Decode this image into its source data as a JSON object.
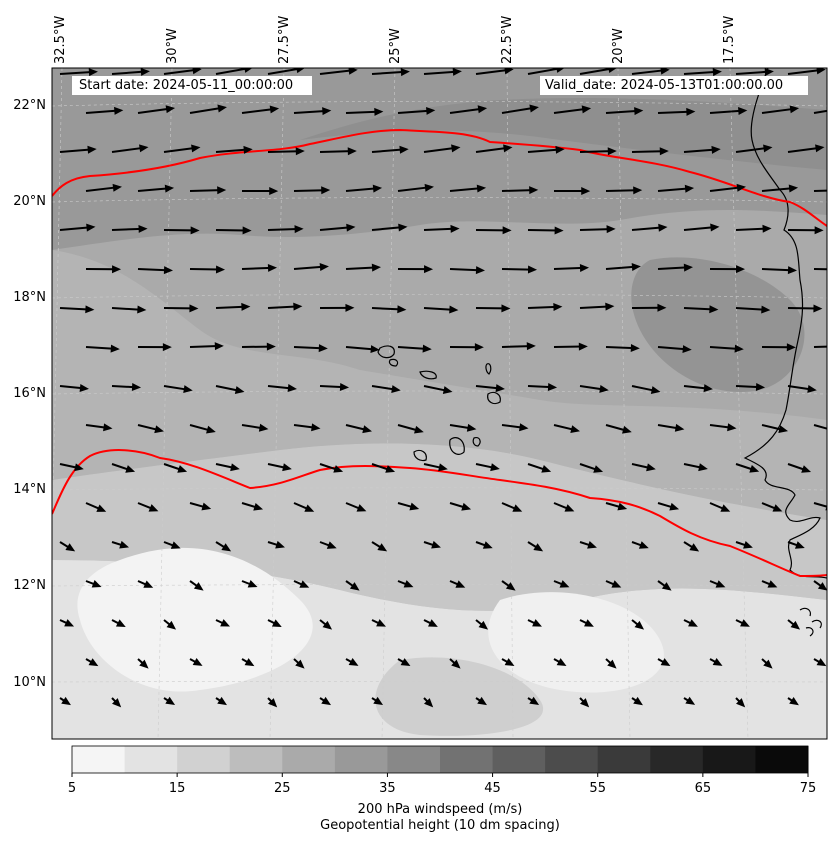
{
  "map": {
    "start_date": "Start date: 2024-05-11_00:00:00",
    "valid_date": "Valid_date: 2024-05-13T01:00:00.00",
    "lon_labels": [
      "32.5°W",
      "30°W",
      "27.5°W",
      "25°W",
      "22.5°W",
      "20°W",
      "17.5°W"
    ],
    "lat_labels": [
      "22°N",
      "20°N",
      "18°N",
      "16°N",
      "14°N",
      "12°N",
      "10°N"
    ],
    "colorbar": {
      "ticks": [
        "5",
        "15",
        "25",
        "35",
        "45",
        "55",
        "65",
        "75"
      ],
      "label": "200 hPa windspeed (m/s)",
      "sublabel": "Geopotential height (10 dm spacing)",
      "colors": [
        "#f5f5f5",
        "#e3e3e3",
        "#d1d1d1",
        "#bdbdbd",
        "#aaaaaa",
        "#999999",
        "#888888",
        "#727272",
        "#5f5f5f",
        "#4c4c4c",
        "#3a3a3a",
        "#282828",
        "#181818",
        "#0a0a0a"
      ]
    },
    "contour_color": "#ff0000",
    "icons": {
      "wind_vectors": "wind-arrow-icon"
    }
  }
}
